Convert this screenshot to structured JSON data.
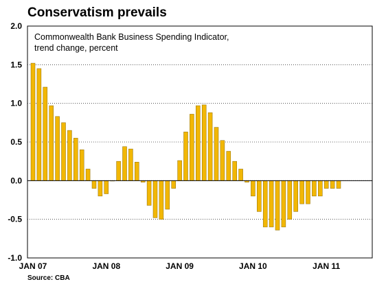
{
  "chart_data": {
    "type": "bar",
    "title": "Conservatism prevails",
    "subtitle_lines": [
      "Commonwealth Bank Business Spending Indicator,",
      "trend change, percent"
    ],
    "source": "Source: CBA",
    "ylim": [
      -1.0,
      2.0
    ],
    "y_ticks": [
      2.0,
      1.5,
      1.0,
      0.5,
      0.0,
      -0.5,
      -1.0
    ],
    "y_tick_labels": [
      "2.0",
      "1.5",
      "1.0",
      "0.5",
      "0.0",
      "-0.5",
      "-1.0"
    ],
    "x_tick_labels": [
      {
        "label": "JAN 07",
        "index": 0
      },
      {
        "label": "JAN 08",
        "index": 12
      },
      {
        "label": "JAN 09",
        "index": 24
      },
      {
        "label": "JAN 10",
        "index": 36
      },
      {
        "label": "JAN 11",
        "index": 48
      }
    ],
    "grid": "horizontal-dotted",
    "bar_color": "#F2B705",
    "bar_edge_color": "#8A6A00",
    "series": [
      {
        "start": "JAN 07",
        "frequency": "monthly",
        "values": [
          1.52,
          1.45,
          1.21,
          0.97,
          0.83,
          0.75,
          0.65,
          0.55,
          0.4,
          0.15,
          -0.1,
          -0.2,
          -0.17,
          0.0,
          0.25,
          0.44,
          0.41,
          0.24,
          -0.02,
          -0.32,
          -0.48,
          -0.5,
          -0.37,
          -0.1,
          0.26,
          0.63,
          0.86,
          0.97,
          0.98,
          0.88,
          0.69,
          0.52,
          0.38,
          0.25,
          0.15,
          -0.02,
          -0.2,
          -0.4,
          -0.6,
          -0.6,
          -0.64,
          -0.6,
          -0.5,
          -0.4,
          -0.3,
          -0.3,
          -0.2,
          -0.2,
          -0.1,
          -0.1,
          -0.1
        ]
      }
    ]
  }
}
